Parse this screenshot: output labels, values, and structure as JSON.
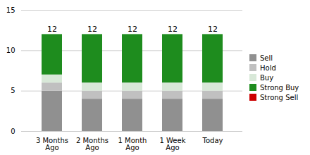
{
  "chart_data": {
    "type": "bar",
    "stacked": true,
    "categories": [
      "3 Months\nAgo",
      "2 Months\nAgo",
      "1 Month\nAgo",
      "1 Week\nAgo",
      "Today"
    ],
    "series": [
      {
        "name": "Sell",
        "color": "#909090",
        "values": [
          5,
          4,
          4,
          4,
          4
        ]
      },
      {
        "name": "Hold",
        "color": "#c0c0c0",
        "values": [
          1,
          1,
          1,
          1,
          1
        ]
      },
      {
        "name": "Buy",
        "color": "#d8e8d8",
        "values": [
          1,
          1,
          1,
          1,
          1
        ]
      },
      {
        "name": "Strong Buy",
        "color": "#1e8c1e",
        "values": [
          5,
          6,
          6,
          6,
          6
        ]
      },
      {
        "name": "Strong Sell",
        "color": "#cc0000",
        "values": [
          0,
          0,
          0,
          0,
          0
        ]
      }
    ],
    "totals": [
      12,
      12,
      12,
      12,
      12
    ],
    "ylim": [
      0,
      15
    ],
    "yticks": [
      0,
      5,
      10,
      15
    ],
    "grid": true,
    "legend": "right"
  }
}
